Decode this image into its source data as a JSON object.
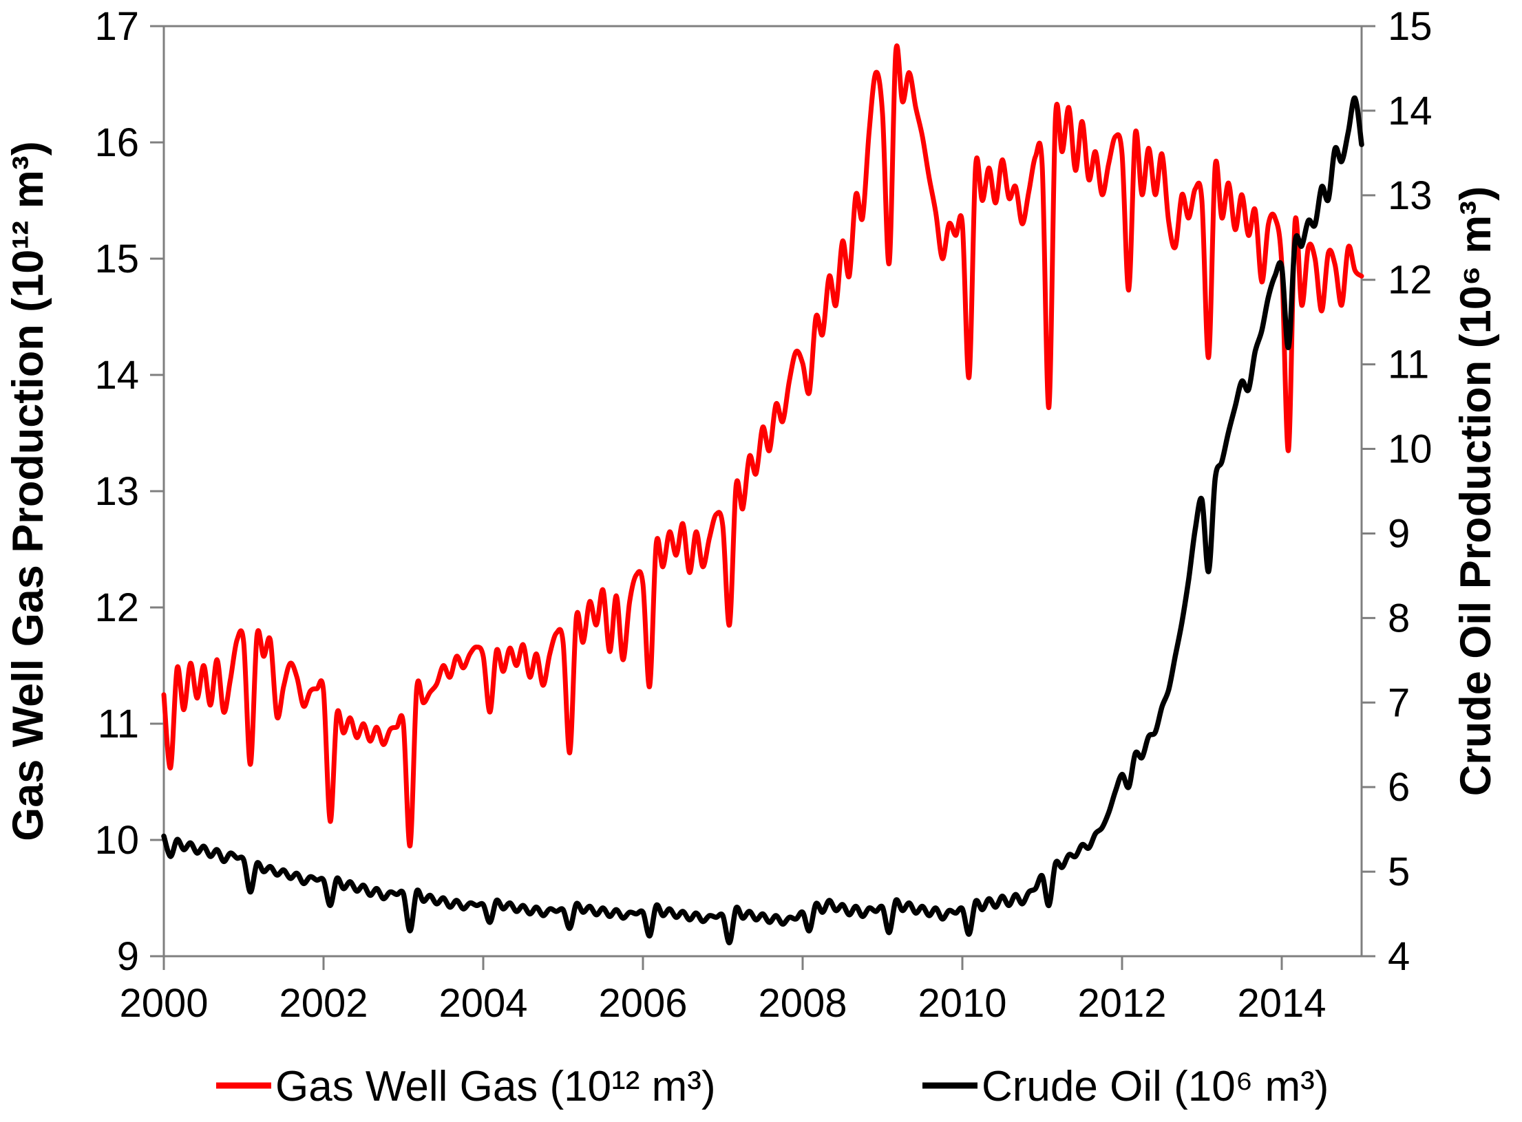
{
  "figure": {
    "background": "#ffffff",
    "axis_color": "#7f7f7f",
    "tick_label_color": "#000000"
  },
  "chart_data": {
    "type": "line",
    "title": "",
    "grid": "off",
    "x_axis": {
      "label": "",
      "range": [
        2000,
        2015
      ],
      "ticks": [
        2000,
        2002,
        2004,
        2006,
        2008,
        2010,
        2012,
        2014
      ]
    },
    "y_left": {
      "label": "Gas Well Gas Production (10¹² m³)",
      "range": [
        9,
        17
      ],
      "ticks": [
        9,
        10,
        11,
        12,
        13,
        14,
        15,
        16,
        17
      ]
    },
    "y_right": {
      "label": "Crude Oil Production (10⁶ m³)",
      "range": [
        4,
        15
      ],
      "ticks": [
        4,
        5,
        6,
        7,
        8,
        9,
        10,
        11,
        12,
        13,
        14,
        15
      ]
    },
    "legend": {
      "position": "bottom"
    },
    "x_start": 2000,
    "x_step_years": 0.0833333,
    "series": [
      {
        "name": "Gas Well Gas (10¹² m³)",
        "axis": "left",
        "color": "#fe0000",
        "line_width": 7,
        "values": [
          11.25,
          10.62,
          11.48,
          11.12,
          11.52,
          11.22,
          11.5,
          11.16,
          11.55,
          11.1,
          11.38,
          11.72,
          11.7,
          10.65,
          11.76,
          11.58,
          11.72,
          11.06,
          11.32,
          11.52,
          11.4,
          11.15,
          11.28,
          11.3,
          11.28,
          10.16,
          11.08,
          10.92,
          11.05,
          10.88,
          11.0,
          10.85,
          10.97,
          10.82,
          10.95,
          10.97,
          11.0,
          9.95,
          11.3,
          11.18,
          11.27,
          11.34,
          11.5,
          11.4,
          11.58,
          11.48,
          11.6,
          11.66,
          11.58,
          11.1,
          11.63,
          11.45,
          11.65,
          11.5,
          11.68,
          11.4,
          11.6,
          11.33,
          11.6,
          11.78,
          11.7,
          10.75,
          11.92,
          11.7,
          12.05,
          11.85,
          12.15,
          11.62,
          12.1,
          11.55,
          12.05,
          12.28,
          12.2,
          11.32,
          12.55,
          12.35,
          12.65,
          12.45,
          12.72,
          12.3,
          12.65,
          12.35,
          12.6,
          12.8,
          12.7,
          11.85,
          13.05,
          12.85,
          13.3,
          13.15,
          13.55,
          13.35,
          13.75,
          13.6,
          13.95,
          14.2,
          14.1,
          13.85,
          14.5,
          14.35,
          14.85,
          14.6,
          15.15,
          14.85,
          15.55,
          15.35,
          16.1,
          16.6,
          16.25,
          14.96,
          16.78,
          16.35,
          16.6,
          16.3,
          16.05,
          15.7,
          15.4,
          15.0,
          15.3,
          15.2,
          15.3,
          13.98,
          15.8,
          15.5,
          15.78,
          15.48,
          15.85,
          15.52,
          15.62,
          15.3,
          15.58,
          15.88,
          15.8,
          13.72,
          16.22,
          15.92,
          16.3,
          15.76,
          16.18,
          15.68,
          15.92,
          15.55,
          15.82,
          16.05,
          15.9,
          14.73,
          16.08,
          15.55,
          15.95,
          15.55,
          15.9,
          15.32,
          15.1,
          15.55,
          15.35,
          15.6,
          15.5,
          14.15,
          15.8,
          15.35,
          15.65,
          15.25,
          15.55,
          15.2,
          15.42,
          14.8,
          15.3,
          15.35,
          14.95,
          13.35,
          15.32,
          14.6,
          15.1,
          15.0,
          14.55,
          15.05,
          14.95,
          14.6,
          15.1,
          14.9,
          14.85
        ]
      },
      {
        "name": "Crude Oil (10⁶ m³)",
        "axis": "right",
        "color": "#000000",
        "line_width": 7.5,
        "values": [
          5.42,
          5.18,
          5.38,
          5.26,
          5.34,
          5.22,
          5.3,
          5.18,
          5.26,
          5.12,
          5.22,
          5.16,
          5.14,
          4.76,
          5.1,
          5.0,
          5.06,
          4.96,
          5.02,
          4.92,
          4.98,
          4.86,
          4.94,
          4.9,
          4.9,
          4.6,
          4.92,
          4.8,
          4.88,
          4.77,
          4.84,
          4.72,
          4.8,
          4.68,
          4.76,
          4.73,
          4.74,
          4.3,
          4.77,
          4.65,
          4.72,
          4.62,
          4.69,
          4.58,
          4.66,
          4.56,
          4.63,
          4.6,
          4.61,
          4.4,
          4.66,
          4.56,
          4.63,
          4.53,
          4.6,
          4.5,
          4.58,
          4.48,
          4.56,
          4.53,
          4.55,
          4.33,
          4.62,
          4.52,
          4.59,
          4.49,
          4.57,
          4.47,
          4.55,
          4.45,
          4.52,
          4.5,
          4.52,
          4.24,
          4.6,
          4.48,
          4.56,
          4.46,
          4.53,
          4.43,
          4.51,
          4.41,
          4.48,
          4.46,
          4.48,
          4.16,
          4.57,
          4.45,
          4.53,
          4.43,
          4.5,
          4.4,
          4.48,
          4.38,
          4.46,
          4.44,
          4.52,
          4.3,
          4.62,
          4.52,
          4.66,
          4.54,
          4.61,
          4.49,
          4.59,
          4.47,
          4.57,
          4.53,
          4.58,
          4.28,
          4.66,
          4.54,
          4.63,
          4.51,
          4.59,
          4.48,
          4.57,
          4.44,
          4.54,
          4.51,
          4.56,
          4.26,
          4.65,
          4.55,
          4.68,
          4.58,
          4.71,
          4.6,
          4.73,
          4.62,
          4.76,
          4.8,
          4.95,
          4.6,
          5.1,
          5.05,
          5.2,
          5.18,
          5.32,
          5.28,
          5.45,
          5.52,
          5.7,
          5.95,
          6.15,
          6.0,
          6.4,
          6.35,
          6.6,
          6.65,
          6.95,
          7.15,
          7.55,
          7.95,
          8.45,
          9.05,
          9.4,
          8.55,
          9.65,
          9.85,
          10.2,
          10.5,
          10.8,
          10.7,
          11.15,
          11.4,
          11.8,
          12.05,
          12.15,
          11.2,
          12.45,
          12.4,
          12.7,
          12.65,
          13.1,
          12.95,
          13.55,
          13.4,
          13.75,
          14.15,
          13.6
        ]
      }
    ]
  }
}
